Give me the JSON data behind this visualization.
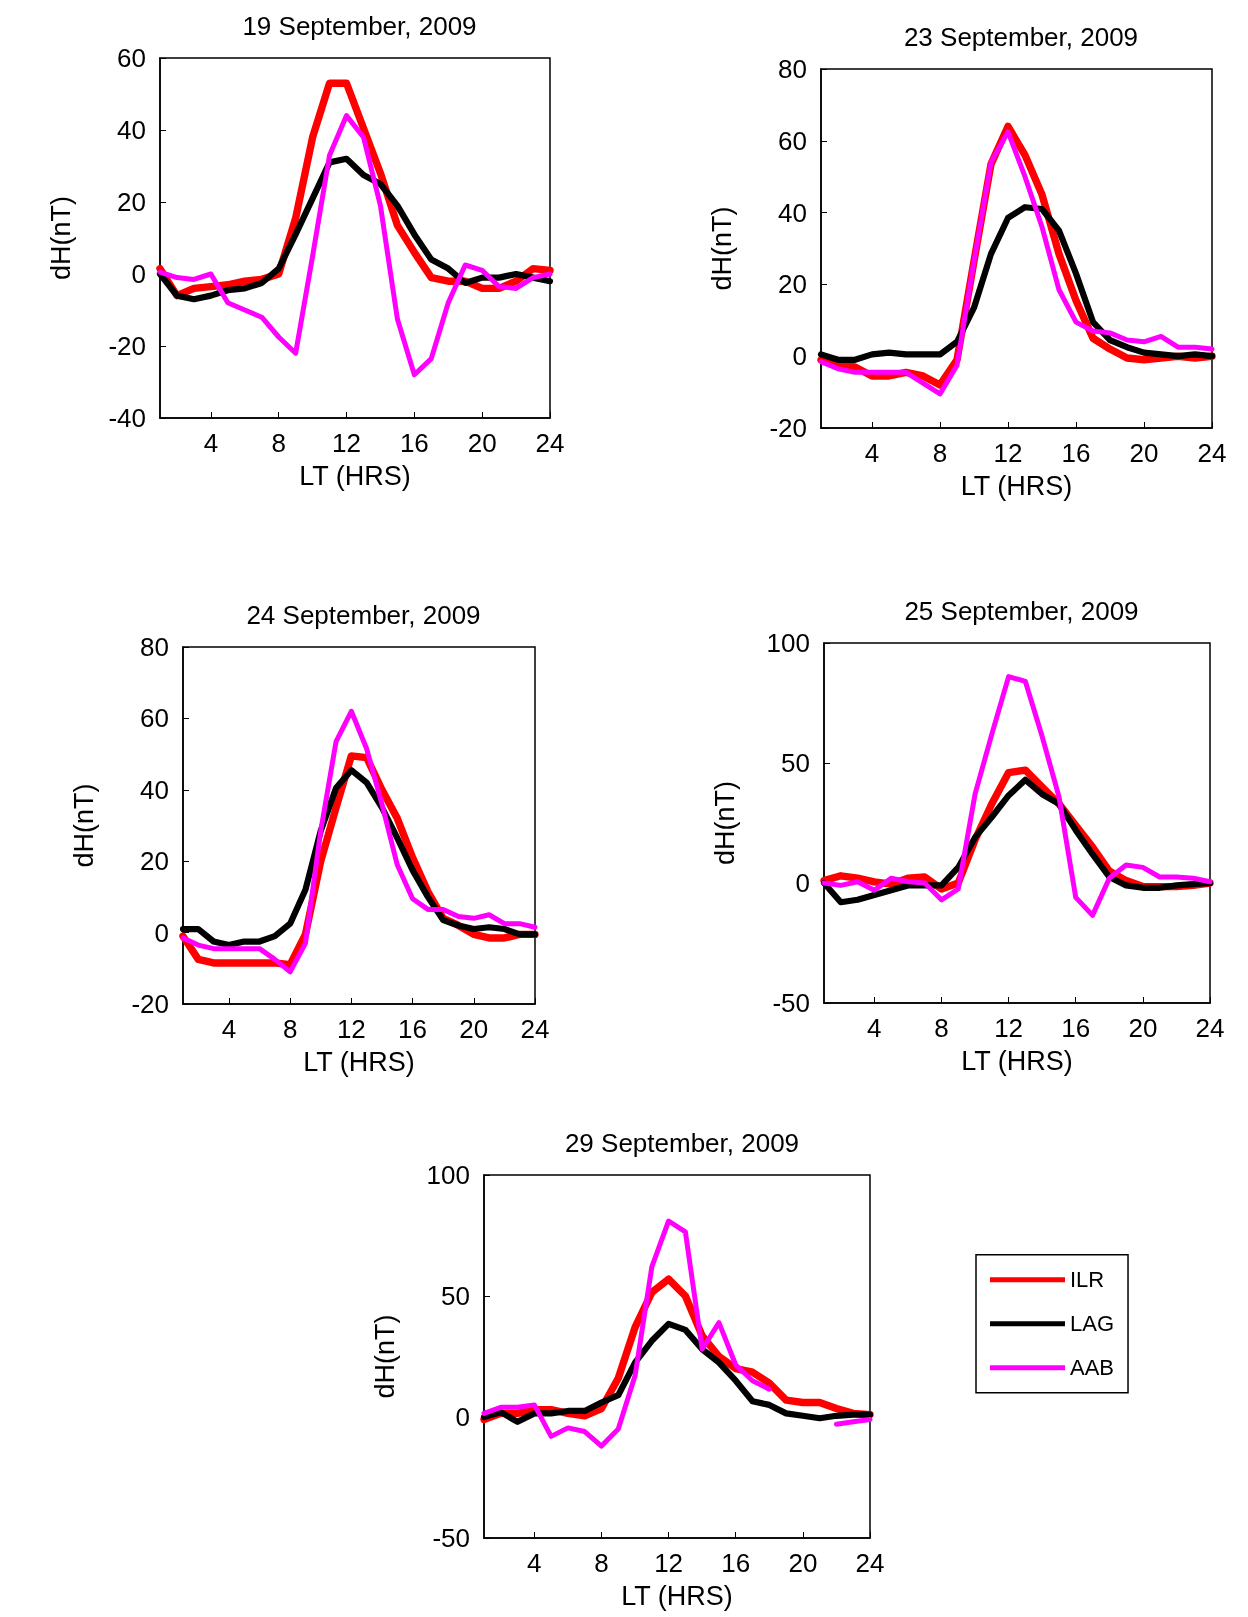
{
  "chart_data": [
    {
      "type": "line",
      "title": "19 September, 2009",
      "xlabel": "LT (HRS)",
      "ylabel": "dH(nT)",
      "x": [
        1,
        2,
        3,
        4,
        5,
        6,
        7,
        8,
        9,
        10,
        11,
        12,
        13,
        14,
        15,
        16,
        17,
        18,
        19,
        20,
        21,
        22,
        23,
        24
      ],
      "xlim": [
        1,
        24
      ],
      "xticks": [
        4,
        8,
        12,
        16,
        20,
        24
      ],
      "ylim": [
        -40,
        60
      ],
      "yticks": [
        -40,
        -20,
        0,
        20,
        40,
        60
      ],
      "grid": false,
      "legend": false,
      "marker": "none",
      "line_style": "solid",
      "series": [
        {
          "color": "#ff0000",
          "values": [
            1.5,
            -6,
            -4,
            -3.5,
            -3,
            -2,
            -1.5,
            0,
            15.5,
            38,
            53,
            53,
            40.5,
            28,
            13.5,
            6,
            -1,
            -2,
            -2,
            -4,
            -4,
            -2,
            1.5,
            1
          ]
        },
        {
          "color": "#000000",
          "values": [
            0,
            -6,
            -7,
            -6,
            -4.5,
            -4,
            -2.5,
            1.5,
            11,
            21,
            31,
            32,
            27.5,
            25,
            19,
            11,
            4,
            1.5,
            -2.5,
            -1,
            -1,
            0,
            -1,
            -2
          ]
        },
        {
          "color": "#ff00ff",
          "values": [
            0.5,
            -1,
            -1.5,
            0,
            -8,
            -10,
            -12,
            -17.5,
            -22,
            5,
            33,
            44,
            38,
            19,
            -12.5,
            -28,
            -23.5,
            -8,
            2.5,
            1,
            -3.5,
            -4,
            -1,
            0
          ]
        }
      ]
    },
    {
      "type": "line",
      "title": "23 September, 2009",
      "xlabel": "LT (HRS)",
      "ylabel": "dH(nT)",
      "x": [
        1,
        2,
        3,
        4,
        5,
        6,
        7,
        8,
        9,
        10,
        11,
        12,
        13,
        14,
        15,
        16,
        17,
        18,
        19,
        20,
        21,
        22,
        23,
        24
      ],
      "xlim": [
        1,
        24
      ],
      "xticks": [
        4,
        8,
        12,
        16,
        20,
        24
      ],
      "ylim": [
        -20,
        80
      ],
      "yticks": [
        -20,
        0,
        20,
        40,
        60,
        80
      ],
      "grid": false,
      "legend": false,
      "marker": "none",
      "line_style": "solid",
      "series": [
        {
          "color": "#ff0000",
          "values": [
            -1,
            -2.5,
            -3,
            -5.5,
            -5.5,
            -4.5,
            -5.5,
            -8,
            -1,
            26.5,
            53.5,
            64,
            56,
            45,
            28.5,
            15.5,
            5,
            2,
            -0.5,
            -1,
            -0.5,
            0,
            -0.5,
            0
          ]
        },
        {
          "color": "#000000",
          "values": [
            0.5,
            -1,
            -1,
            0.5,
            1,
            0.5,
            0.5,
            0.5,
            4,
            13.5,
            28.5,
            38.5,
            41.5,
            41,
            35,
            23,
            9.5,
            4.5,
            2.5,
            1,
            0.5,
            0,
            0.5,
            0
          ]
        },
        {
          "color": "#ff00ff",
          "values": [
            -1.5,
            -3.5,
            -4.5,
            -4.5,
            -4.5,
            -4.5,
            -7.5,
            -10.5,
            -2.5,
            26.5,
            54,
            62.5,
            50,
            36,
            18.5,
            9.5,
            7,
            6.5,
            4.5,
            4,
            5.5,
            2.5,
            2.5,
            2
          ]
        }
      ]
    },
    {
      "type": "line",
      "title": "24 September, 2009",
      "xlabel": "LT (HRS)",
      "ylabel": "dH(nT)",
      "x": [
        1,
        2,
        3,
        4,
        5,
        6,
        7,
        8,
        9,
        10,
        11,
        12,
        13,
        14,
        15,
        16,
        17,
        18,
        19,
        20,
        21,
        22,
        23,
        24
      ],
      "xlim": [
        1,
        24
      ],
      "xticks": [
        4,
        8,
        12,
        16,
        20,
        24
      ],
      "ylim": [
        -20,
        80
      ],
      "yticks": [
        -20,
        0,
        20,
        40,
        60,
        80
      ],
      "grid": false,
      "legend": false,
      "marker": "none",
      "line_style": "solid",
      "series": [
        {
          "color": "#ff0000",
          "values": [
            -1,
            -7.5,
            -8.5,
            -8.5,
            -8.5,
            -8.5,
            -8.5,
            -9,
            -0.5,
            20,
            35,
            49.5,
            49,
            40,
            32,
            21,
            11.5,
            4,
            2,
            -0.5,
            -1.5,
            -1.5,
            -0.5,
            -0.5
          ]
        },
        {
          "color": "#000000",
          "values": [
            1,
            1,
            -2.5,
            -3.5,
            -2.5,
            -2.5,
            -1,
            2.5,
            12,
            28.5,
            40.5,
            45.5,
            42,
            35,
            26.5,
            17.5,
            10,
            3.5,
            2,
            1,
            1.5,
            1,
            -0.5,
            -0.5
          ]
        },
        {
          "color": "#ff00ff",
          "values": [
            -1.5,
            -3.5,
            -4.5,
            -4.5,
            -4.5,
            -4.5,
            -7.5,
            -11,
            -3,
            28.5,
            53.5,
            62,
            51.5,
            36,
            19,
            9.5,
            6.5,
            6.5,
            4.5,
            4,
            5,
            2.5,
            2.5,
            1.5
          ]
        }
      ]
    },
    {
      "type": "line",
      "title": "25 September, 2009",
      "xlabel": "LT (HRS)",
      "ylabel": "dH(nT)",
      "x": [
        1,
        2,
        3,
        4,
        5,
        6,
        7,
        8,
        9,
        10,
        11,
        12,
        13,
        14,
        15,
        16,
        17,
        18,
        19,
        20,
        21,
        22,
        23,
        24
      ],
      "xlim": [
        1,
        24
      ],
      "xticks": [
        4,
        8,
        12,
        16,
        20,
        24
      ],
      "ylim": [
        -50,
        100
      ],
      "yticks": [
        -50,
        0,
        50,
        100
      ],
      "grid": false,
      "legend": false,
      "marker": "none",
      "line_style": "solid",
      "series": [
        {
          "color": "#ff0000",
          "values": [
            1,
            3,
            2,
            0.5,
            -0.5,
            2,
            2.5,
            -2.5,
            0,
            18,
            33,
            46,
            47,
            40,
            33,
            24,
            15,
            5,
            1,
            -1.5,
            -1.5,
            -1.5,
            -1,
            0
          ]
        },
        {
          "color": "#000000",
          "values": [
            0,
            -8,
            -7,
            -5,
            -3,
            -1,
            -1,
            -1,
            6.5,
            19,
            27.5,
            36.5,
            43,
            37,
            33,
            22,
            12,
            2.5,
            -1,
            -2,
            -2,
            -1,
            -0.5,
            0
          ]
        },
        {
          "color": "#ff00ff",
          "values": [
            0,
            -1,
            0.5,
            -3,
            2,
            0.5,
            0,
            -7,
            -2.5,
            37,
            62,
            86,
            84,
            61,
            36,
            -6,
            -13.5,
            2,
            7.5,
            6.5,
            2.5,
            2.5,
            2,
            0.5
          ]
        }
      ]
    },
    {
      "type": "line",
      "title": "29 September, 2009",
      "xlabel": "LT (HRS)",
      "ylabel": "dH(nT)",
      "x": [
        1,
        2,
        3,
        4,
        5,
        6,
        7,
        8,
        9,
        10,
        11,
        12,
        13,
        14,
        15,
        16,
        17,
        18,
        19,
        20,
        21,
        22,
        23,
        24
      ],
      "xlim": [
        1,
        24
      ],
      "xticks": [
        4,
        8,
        12,
        16,
        20,
        24
      ],
      "ylim": [
        -50,
        100
      ],
      "yticks": [
        -50,
        0,
        50,
        100
      ],
      "grid": false,
      "legend": "right",
      "marker": "none",
      "line_style": "solid",
      "series": [
        {
          "name": "ILR",
          "color": "#ff0000",
          "values": [
            -1,
            1.5,
            1.5,
            3,
            3,
            1.5,
            0.5,
            3.5,
            16,
            37,
            51.5,
            57,
            50,
            33.5,
            25,
            20,
            18.5,
            14,
            7,
            6,
            6,
            3.5,
            1.5,
            1
          ]
        },
        {
          "name": "LAG",
          "color": "#000000",
          "values": [
            0,
            2,
            -2,
            1.5,
            1.5,
            2.5,
            2.5,
            6,
            9,
            22.5,
            31.5,
            38.5,
            36,
            28,
            22.5,
            15,
            6.5,
            5,
            1.5,
            0.5,
            -0.5,
            0.5,
            1,
            1
          ]
        },
        {
          "name": "AAB",
          "color": "#ff00ff",
          "values": [
            1.5,
            4,
            4,
            5,
            -8,
            -4.5,
            -6,
            -12,
            -5,
            17,
            62,
            81,
            76.5,
            28,
            39,
            21.5,
            15,
            11.5,
            null,
            null,
            null,
            -3,
            -2,
            -1
          ]
        }
      ]
    }
  ]
}
